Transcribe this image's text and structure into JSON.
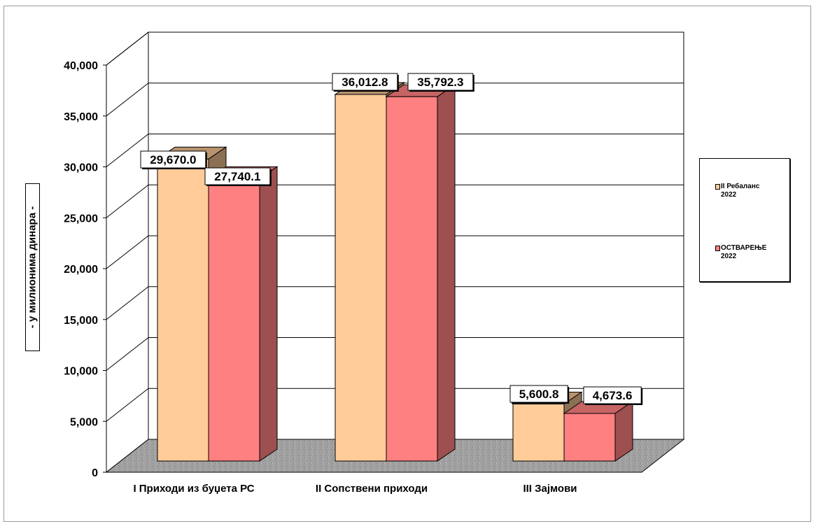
{
  "chart_data": {
    "type": "bar",
    "categories": [
      "I Приходи из буџета РС",
      "II Сопствени приходи",
      "III Зајмови"
    ],
    "series": [
      {
        "name": "II Ребаланс\n2022",
        "values": [
          29670.0,
          36012.8,
          5600.8
        ],
        "color": "#FFCC99"
      },
      {
        "name": "ОСТВАРЕЊЕ\n2022",
        "values": [
          27740.1,
          35792.3,
          4673.6
        ],
        "color": "#FF8080"
      }
    ],
    "data_labels": [
      [
        "29,670.0",
        "36,012.8",
        "5,600.8"
      ],
      [
        "27,740.1",
        "35,792.3",
        "4,673.6"
      ]
    ],
    "ylabel": "- у милионима динара -",
    "ylim": [
      0,
      40000
    ],
    "yticks": [
      "0",
      "5,000",
      "10,000",
      "15,000",
      "20,000",
      "25,000",
      "30,000",
      "35,000",
      "40,000"
    ],
    "ytick_values": [
      0,
      5000,
      10000,
      15000,
      20000,
      25000,
      30000,
      35000,
      40000
    ],
    "grid": true,
    "legend_position": "right",
    "floor_color": "#A0A0A0"
  }
}
